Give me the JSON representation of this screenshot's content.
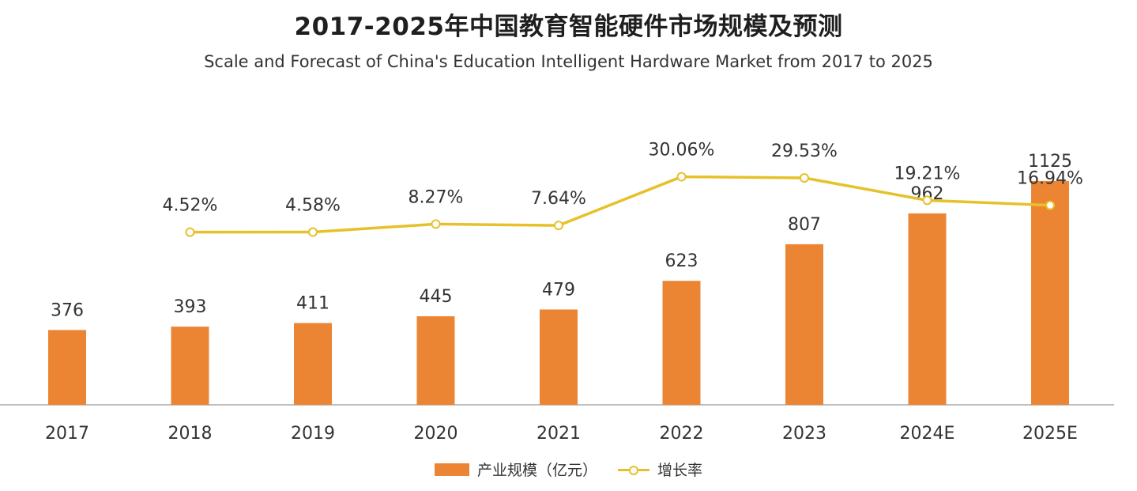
{
  "title": "2017-2025年中国教育智能硬件市场规模及预测",
  "subtitle": "Scale and Forecast of China's Education Intelligent Hardware Market from 2017 to 2025",
  "colors": {
    "bar": "#EC8533",
    "line": "#E6C12A",
    "axis": "#BFBFBF",
    "text": "#333333"
  },
  "legend": {
    "bar_label": "产业规模（亿元）",
    "line_label": "增长率",
    "position": "bottom"
  },
  "chart_data": {
    "type": "bar",
    "categories": [
      "2017",
      "2018",
      "2019",
      "2020",
      "2021",
      "2022",
      "2023",
      "2024E",
      "2025E"
    ],
    "series": [
      {
        "name": "产业规模（亿元）",
        "type": "bar",
        "values": [
          376,
          393,
          411,
          445,
          479,
          623,
          807,
          962,
          1125
        ],
        "labels": [
          "376",
          "393",
          "411",
          "445",
          "479",
          "623",
          "807",
          "962",
          "1125"
        ]
      },
      {
        "name": "增长率",
        "type": "line",
        "values": [
          null,
          4.52,
          4.58,
          8.27,
          7.64,
          30.06,
          29.53,
          19.21,
          16.94
        ],
        "labels": [
          "",
          "4.52%",
          "4.58%",
          "8.27%",
          "7.64%",
          "30.06%",
          "29.53%",
          "19.21%",
          "16.94%"
        ]
      }
    ],
    "ylim": [
      0,
      1200
    ],
    "ylim_secondary": [
      -75,
      35
    ],
    "grid": false,
    "xlabel": "",
    "ylabel": ""
  }
}
